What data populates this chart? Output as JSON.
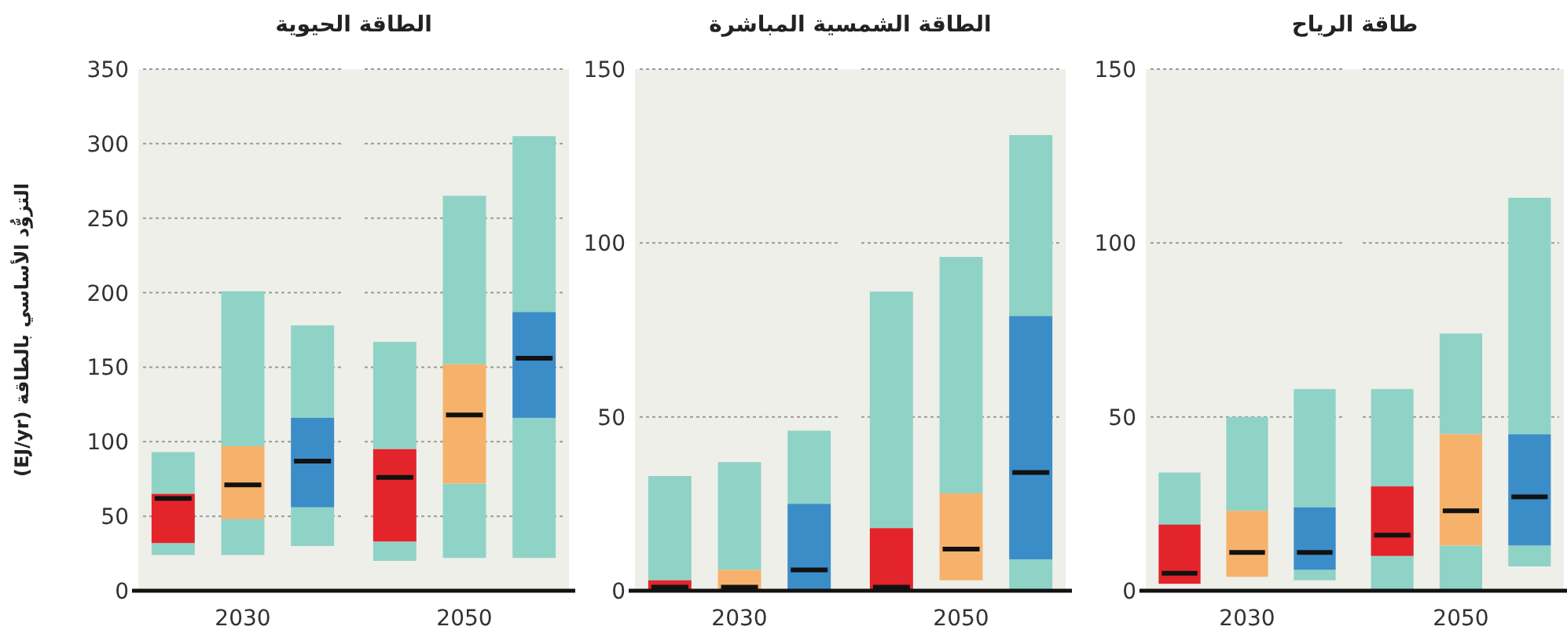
{
  "chart_data": [
    {
      "type": "box",
      "title": "الطاقة الحيوية",
      "ylabel": "التزوُّد الأساسي بالطاقة (EJ/yr)",
      "categories": [
        "2030",
        "2050"
      ],
      "color": "#8fd3c6",
      "ylim": [
        0,
        350
      ],
      "yticks": [
        0,
        50,
        100,
        150,
        200,
        250,
        300,
        350
      ],
      "grid": "y",
      "series": [
        {
          "color": "#e3242b",
          "boxes": [
            {
              "low": 24,
              "q1": 32,
              "median": 62,
              "q3": 65,
              "high": 93
            },
            {
              "low": 20,
              "q1": 33,
              "median": 76,
              "q3": 95,
              "high": 167
            }
          ]
        },
        {
          "color": "#f6b26b",
          "boxes": [
            {
              "low": 24,
              "q1": 48,
              "median": 71,
              "q3": 97,
              "high": 201
            },
            {
              "low": 22,
              "q1": 72,
              "median": 118,
              "q3": 152,
              "high": 265
            }
          ]
        },
        {
          "color": "#3b8dc8",
          "boxes": [
            {
              "low": 30,
              "q1": 56,
              "median": 87,
              "q3": 116,
              "high": 178
            },
            {
              "low": 22,
              "q1": 116,
              "median": 156,
              "q3": 187,
              "high": 305
            }
          ]
        }
      ]
    },
    {
      "type": "box",
      "title": "الطاقة الشمسية المباشرة",
      "categories": [
        "2030",
        "2050"
      ],
      "color": "#8fd3c6",
      "ylim": [
        0,
        150
      ],
      "yticks": [
        0,
        50,
        100,
        150
      ],
      "grid": "y",
      "series": [
        {
          "color": "#e3242b",
          "boxes": [
            {
              "low": 0,
              "q1": 0,
              "median": 1,
              "q3": 3,
              "high": 33
            },
            {
              "low": 0,
              "q1": 0,
              "median": 1,
              "q3": 18,
              "high": 86
            }
          ]
        },
        {
          "color": "#f6b26b",
          "boxes": [
            {
              "low": 0,
              "q1": 0,
              "median": 1,
              "q3": 6,
              "high": 37
            },
            {
              "low": 3,
              "q1": 3,
              "median": 12,
              "q3": 28,
              "high": 96
            }
          ]
        },
        {
          "color": "#3b8dc8",
          "boxes": [
            {
              "low": 0,
              "q1": 0,
              "median": 6,
              "q3": 25,
              "high": 46
            },
            {
              "low": 0,
              "q1": 9,
              "median": 34,
              "q3": 79,
              "high": 131
            }
          ]
        }
      ]
    },
    {
      "type": "box",
      "title": "طاقة الرياح",
      "categories": [
        "2030",
        "2050"
      ],
      "color": "#8fd3c6",
      "ylim": [
        0,
        150
      ],
      "yticks": [
        0,
        50,
        100,
        150
      ],
      "grid": "y",
      "series": [
        {
          "color": "#e3242b",
          "boxes": [
            {
              "low": 2,
              "q1": 2,
              "median": 5,
              "q3": 19,
              "high": 34
            },
            {
              "low": 0,
              "q1": 10,
              "median": 16,
              "q3": 30,
              "high": 58
            }
          ]
        },
        {
          "color": "#f6b26b",
          "boxes": [
            {
              "low": 4,
              "q1": 4,
              "median": 11,
              "q3": 23,
              "high": 50
            },
            {
              "low": 0,
              "q1": 13,
              "median": 23,
              "q3": 45,
              "high": 74
            }
          ]
        },
        {
          "color": "#3b8dc8",
          "boxes": [
            {
              "low": 3,
              "q1": 6,
              "median": 11,
              "q3": 24,
              "high": 58
            },
            {
              "low": 7,
              "q1": 13,
              "median": 27,
              "q3": 45,
              "high": 113
            }
          ]
        }
      ]
    }
  ]
}
